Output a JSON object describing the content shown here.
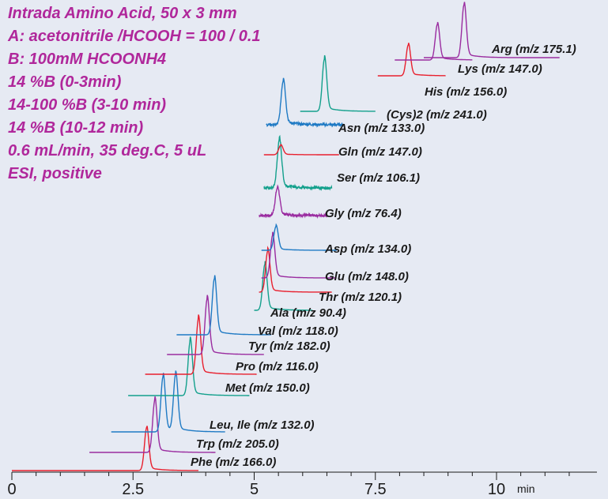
{
  "conditions": [
    "Intrada Amino Acid, 50 x 3 mm",
    "A: acetonitrile /HCOOH = 100 / 0.1",
    "B: 100mM HCOONH4",
    "14 %B (0-3min)",
    "14-100 %B (3-10 min)",
    "14 %B (10-12 min)",
    "0.6 mL/min, 35 deg.C, 5 uL",
    "ESI, positive"
  ],
  "colors": {
    "text": "#b0279b",
    "background": "#e6eaf3",
    "red": "#e8202e",
    "purple": "#9a2ca0",
    "blue": "#1f7ac4",
    "teal": "#13a08c"
  },
  "chart_data": {
    "type": "line",
    "title": "",
    "xlabel": "",
    "ylabel": "",
    "x_unit": "min",
    "x_ticks": [
      "0",
      "2.5",
      "5",
      "7.5",
      "10"
    ],
    "xlim": [
      0,
      12
    ],
    "layout_style": "stacked-offset chromatograms, major ticks every 2.5 min, minor ticks every 0.5 min",
    "series": [
      {
        "name": "Phe (m/z 166.0)",
        "retention_time": 2.78,
        "color": "red",
        "baseline_x": [
          0.0,
          3.85
        ],
        "peak_height": 1.0,
        "noise": 0
      },
      {
        "name": "Trp (m/z 205.0)",
        "retention_time": 2.95,
        "color": "purple",
        "baseline_x": [
          1.6,
          4.2
        ],
        "peak_height": 1.0,
        "noise": 0
      },
      {
        "name": "Leu, Ile (m/z 132.0)",
        "retention_time": 3.12,
        "retention_time_2": 3.38,
        "color": "blue",
        "baseline_x": [
          2.05,
          4.4
        ],
        "peak_height": 0.9,
        "noise": 0
      },
      {
        "name": "Met (m/z 150.0)",
        "retention_time": 3.68,
        "color": "teal",
        "baseline_x": [
          2.4,
          4.9
        ],
        "peak_height": 1.0,
        "noise": 0
      },
      {
        "name": "Pro (m/z 116.0)",
        "retention_time": 3.85,
        "color": "red",
        "baseline_x": [
          2.75,
          5.05
        ],
        "peak_height": 1.0,
        "noise": 0
      },
      {
        "name": "Tyr (m/z 182.0)",
        "retention_time": 4.03,
        "color": "purple",
        "baseline_x": [
          3.2,
          5.2
        ],
        "peak_height": 1.0,
        "noise": 0
      },
      {
        "name": "Val (m/z 118.0)",
        "retention_time": 4.18,
        "color": "blue",
        "baseline_x": [
          3.4,
          5.35
        ],
        "peak_height": 1.0,
        "noise": 0
      },
      {
        "name": "Ala (m/z 90.4)",
        "retention_time": 5.22,
        "color": "teal",
        "baseline_x": [
          5.0,
          6.2
        ],
        "peak_height": 1.0,
        "noise": 0
      },
      {
        "name": "Thr (m/z 120.1)",
        "retention_time": 5.28,
        "color": "red",
        "baseline_x": [
          5.1,
          6.6
        ],
        "peak_height": 1.0,
        "noise": 0
      },
      {
        "name": "Glu (m/z 148.0)",
        "retention_time": 5.38,
        "color": "purple",
        "baseline_x": [
          5.15,
          6.7
        ],
        "peak_height": 1.0,
        "noise": 0
      },
      {
        "name": "Asp (m/z 134.0)",
        "retention_time": 5.45,
        "color": "blue",
        "baseline_x": [
          5.15,
          6.7
        ],
        "peak_height": 1.0,
        "noise": 0
      },
      {
        "name": "Gly (m/z 76.4)",
        "retention_time": 5.48,
        "color": "purple",
        "baseline_x": [
          5.1,
          6.5
        ],
        "peak_height": 0.9,
        "noise": 1
      },
      {
        "name": "Ser (m/z 106.1)",
        "retention_time": 5.52,
        "color": "teal",
        "baseline_x": [
          5.2,
          6.6
        ],
        "peak_height": 0.95,
        "noise": 1
      },
      {
        "name": "Gln (m/z 147.0)",
        "retention_time": 5.55,
        "color": "red",
        "baseline_x": [
          5.2,
          6.75
        ],
        "peak_height": 1.0,
        "noise": 0
      },
      {
        "name": "Asn (m/z 133.0)",
        "retention_time": 5.6,
        "color": "blue",
        "baseline_x": [
          5.25,
          6.85
        ],
        "peak_height": 1.0,
        "noise": 1
      },
      {
        "name": "(Cys)2 (m/z 241.0)",
        "retention_time": 6.45,
        "color": "teal",
        "baseline_x": [
          5.95,
          7.5
        ],
        "peak_height": 1.0,
        "noise": 0
      },
      {
        "name": "His (m/z 156.0)",
        "retention_time": 8.18,
        "color": "red",
        "baseline_x": [
          7.55,
          8.95
        ],
        "peak_height": 1.0,
        "noise": 0
      },
      {
        "name": "Lys (m/z 147.0)",
        "retention_time": 8.78,
        "color": "purple",
        "baseline_x": [
          7.9,
          9.5
        ],
        "peak_height": 1.0,
        "noise": 0
      },
      {
        "name": "Arg (m/z 175.1)",
        "retention_time": 9.33,
        "color": "purple",
        "baseline_x": [
          8.5,
          11.3
        ],
        "peak_height": 1.0,
        "noise": 0
      }
    ]
  }
}
